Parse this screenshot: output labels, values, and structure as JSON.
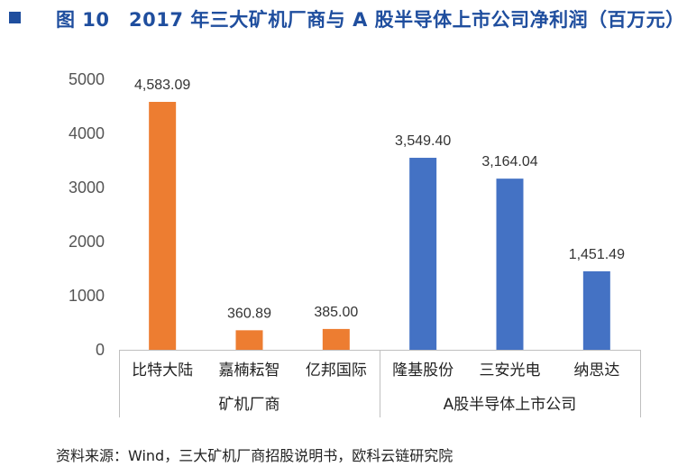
{
  "title": "图 10　2017 年三大矿机厂商与 A 股半导体上市公司净利润（百万元）",
  "source": "资料来源：Wind，三大矿机厂商招股说明书，欧科云链研究院",
  "colors": {
    "title": "#1f4e9e",
    "miner": "#ed7d31",
    "a_share": "#4472c4",
    "axis": "#bfbfbf"
  },
  "chart_data": {
    "type": "bar",
    "title": "2017 年三大矿机厂商与 A 股半导体上市公司净利润（百万元）",
    "ylim": [
      0,
      5000
    ],
    "yticks": [
      0,
      1000,
      2000,
      3000,
      4000,
      5000
    ],
    "grid": false,
    "categories": [
      "比特大陆",
      "嘉楠耘智",
      "亿邦国际",
      "隆基股份",
      "三安光电",
      "纳思达"
    ],
    "values": [
      4583.09,
      360.89,
      385.0,
      3549.4,
      3164.04,
      1451.49
    ],
    "value_labels": [
      "4,583.09",
      "360.89",
      "385.00",
      "3,549.40",
      "3,164.04",
      "1,451.49"
    ],
    "groups": [
      {
        "name": "矿机厂商",
        "categories": [
          "比特大陆",
          "嘉楠耘智",
          "亿邦国际"
        ],
        "color": "#ed7d31"
      },
      {
        "name": "A股半导体上市公司",
        "categories": [
          "隆基股份",
          "三安光电",
          "纳思达"
        ],
        "color": "#4472c4"
      }
    ]
  }
}
